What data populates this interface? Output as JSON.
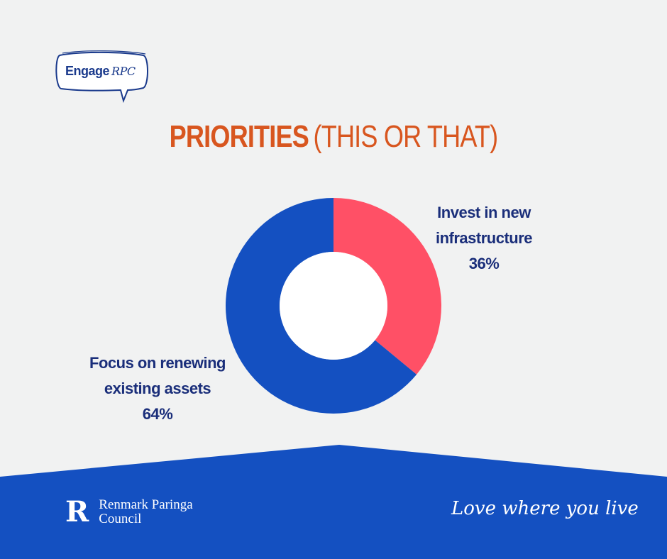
{
  "brand": {
    "logo_text_main": "Engage",
    "logo_text_accent": "RPC",
    "council_line1": "Renmark Paringa",
    "council_line2": "Council",
    "council_mark": "R",
    "tagline": "Love where you live"
  },
  "colors": {
    "background": "#f1f2f2",
    "title": "#d8561f",
    "label": "#1a2e7a",
    "footer": "#1450c1"
  },
  "chart_data": {
    "type": "pie",
    "title_bold": "PRIORITIES",
    "title_rest": "(THIS OR THAT)",
    "donut": true,
    "slices": [
      {
        "label_line1": "Invest in new",
        "label_line2": "infrastructure",
        "value": 36,
        "value_label": "36%",
        "color": "#ff5066"
      },
      {
        "label_line1": "Focus on renewing",
        "label_line2": "existing assets",
        "value": 64,
        "value_label": "64%",
        "color": "#1450c1"
      }
    ]
  }
}
